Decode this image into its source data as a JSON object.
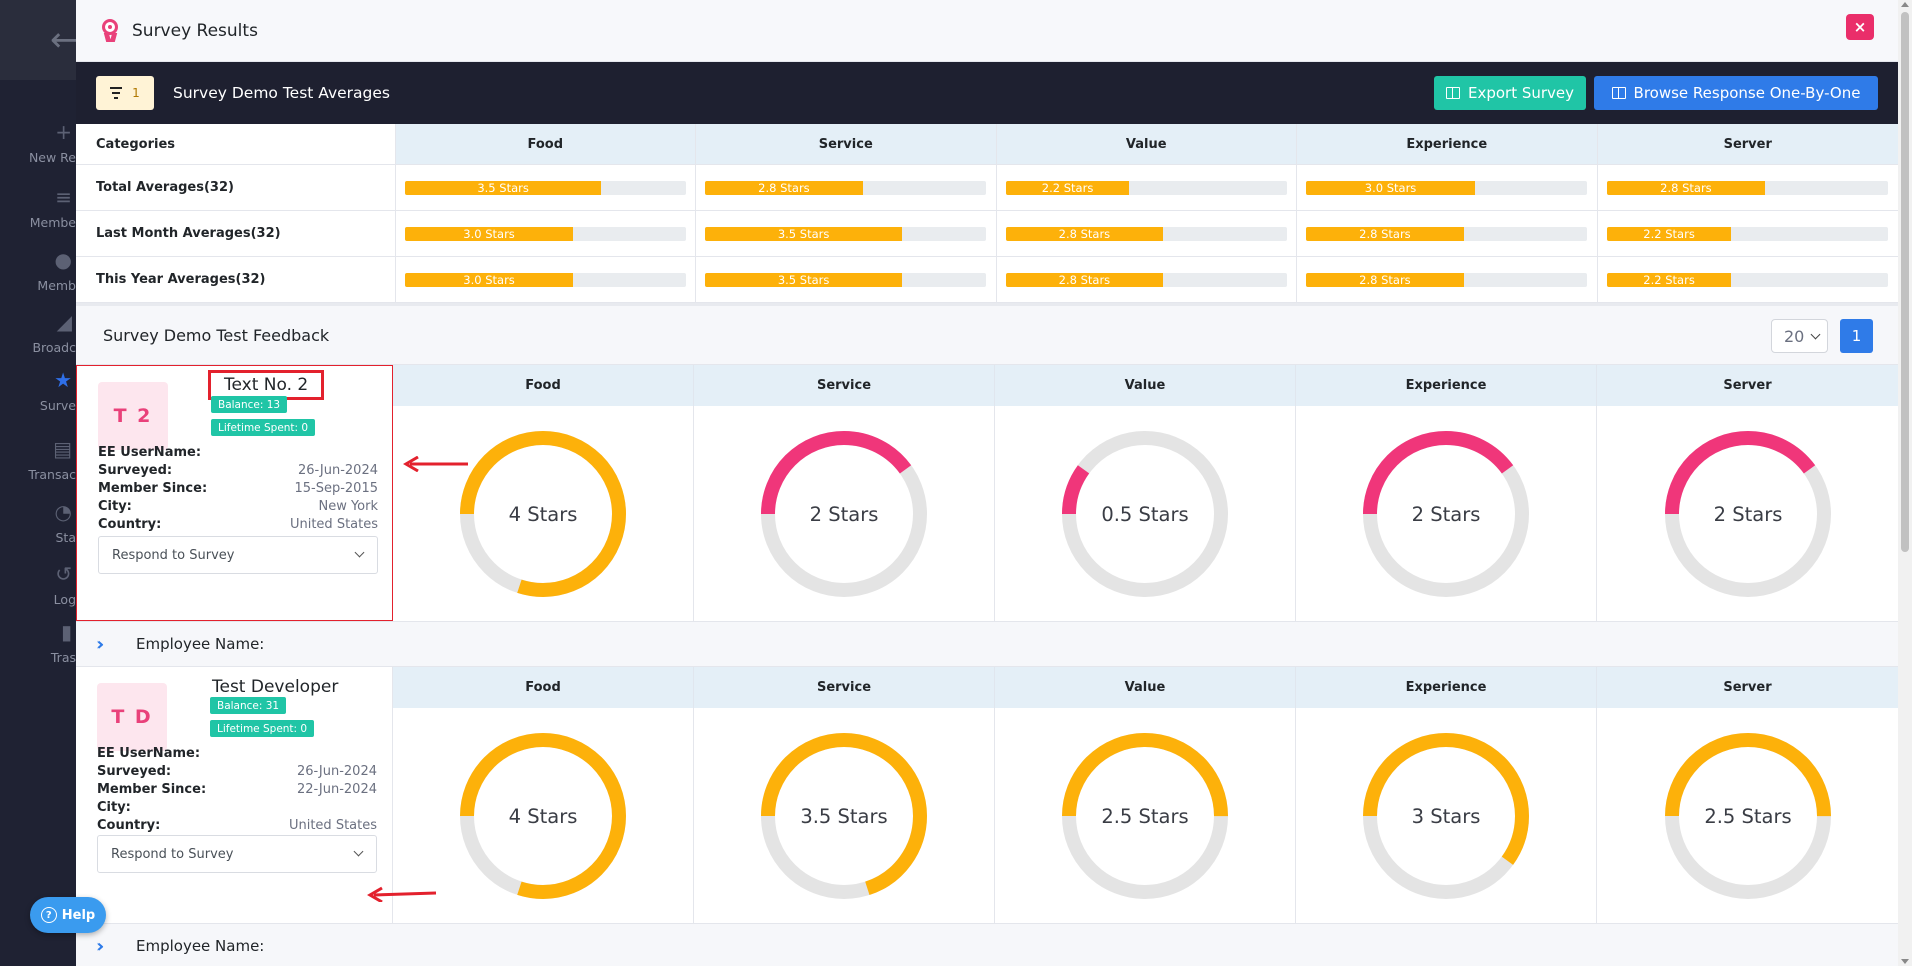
{
  "nav": {
    "items": [
      {
        "label": "New Re",
        "icon": "plus-icon"
      },
      {
        "label": "Membe",
        "icon": "list-icon"
      },
      {
        "label": "Memb",
        "icon": "users-icon"
      },
      {
        "label": "Broadc",
        "icon": "megaphone-icon"
      },
      {
        "label": "Surve",
        "icon": "star-icon"
      },
      {
        "label": "Transac",
        "icon": "receipt-icon"
      },
      {
        "label": "Sta",
        "icon": "pie-chart-icon"
      },
      {
        "label": "Log",
        "icon": "history-icon"
      },
      {
        "label": "Tras",
        "icon": "trash-icon"
      }
    ]
  },
  "help": {
    "label": "Help"
  },
  "modal": {
    "title": "Survey Results",
    "close": "×"
  },
  "toolbar": {
    "filter_count": "1",
    "title": "Survey Demo Test Averages",
    "export_label": "Export Survey",
    "browse_label": "Browse Response One-By-One"
  },
  "averages": {
    "header": {
      "first": "Categories",
      "columns": [
        "Food",
        "Service",
        "Value",
        "Experience",
        "Server"
      ]
    },
    "rows": [
      {
        "label": "Total Averages(32)",
        "values": [
          3.5,
          2.8,
          2.2,
          3.0,
          2.8
        ],
        "texts": [
          "3.5 Stars",
          "2.8 Stars",
          "2.2 Stars",
          "3.0 Stars",
          "2.8 Stars"
        ]
      },
      {
        "label": "Last Month Averages(32)",
        "values": [
          3.0,
          3.5,
          2.8,
          2.8,
          2.2
        ],
        "texts": [
          "3.0 Stars",
          "3.5 Stars",
          "2.8 Stars",
          "2.8 Stars",
          "2.2 Stars"
        ]
      },
      {
        "label": "This Year Averages(32)",
        "values": [
          3.0,
          3.5,
          2.8,
          2.8,
          2.2
        ],
        "texts": [
          "3.0 Stars",
          "3.5 Stars",
          "2.8 Stars",
          "2.8 Stars",
          "2.2 Stars"
        ]
      }
    ],
    "max": 5
  },
  "feedback": {
    "title": "Survey Demo Test Feedback",
    "page_size": "20",
    "page": "1"
  },
  "responses": [
    {
      "initials": "T 2",
      "name": "Text No. 2",
      "balance": "Balance: 13",
      "lifetime": "Lifetime Spent: 0",
      "fields": [
        {
          "k": "EE UserName:",
          "v": ""
        },
        {
          "k": "Surveyed:",
          "v": "26-Jun-2024"
        },
        {
          "k": "Member Since:",
          "v": "15-Sep-2015"
        },
        {
          "k": "City:",
          "v": "New York"
        },
        {
          "k": "Country:",
          "v": "United States"
        }
      ],
      "respond": "Respond to Survey",
      "columns": [
        "Food",
        "Service",
        "Value",
        "Experience",
        "Server"
      ],
      "ratings": [
        4,
        2,
        0.5,
        2,
        2
      ],
      "labels": [
        "4 Stars",
        "2 Stars",
        "0.5 Stars",
        "2 Stars",
        "2 Stars"
      ],
      "employee": "Employee Name:"
    },
    {
      "initials": "T D",
      "name": "Test Developer",
      "balance": "Balance: 31",
      "lifetime": "Lifetime Spent: 0",
      "fields": [
        {
          "k": "EE UserName:",
          "v": ""
        },
        {
          "k": "Surveyed:",
          "v": "26-Jun-2024"
        },
        {
          "k": "Member Since:",
          "v": "22-Jun-2024"
        },
        {
          "k": "City:",
          "v": ""
        },
        {
          "k": "Country:",
          "v": "United States"
        }
      ],
      "respond": "Respond to Survey",
      "columns": [
        "Food",
        "Service",
        "Value",
        "Experience",
        "Server"
      ],
      "ratings": [
        4,
        3.5,
        2.5,
        3,
        2.5
      ],
      "labels": [
        "4 Stars",
        "3.5 Stars",
        "2.5 Stars",
        "3 Stars",
        "2.5 Stars"
      ],
      "employee": "Employee Name:"
    }
  ],
  "colors": {
    "high": "#fdb10a",
    "low": "#f0367a",
    "track": "#e4e4e4",
    "accent": "#2f7be8",
    "teal": "#20c5a6"
  }
}
